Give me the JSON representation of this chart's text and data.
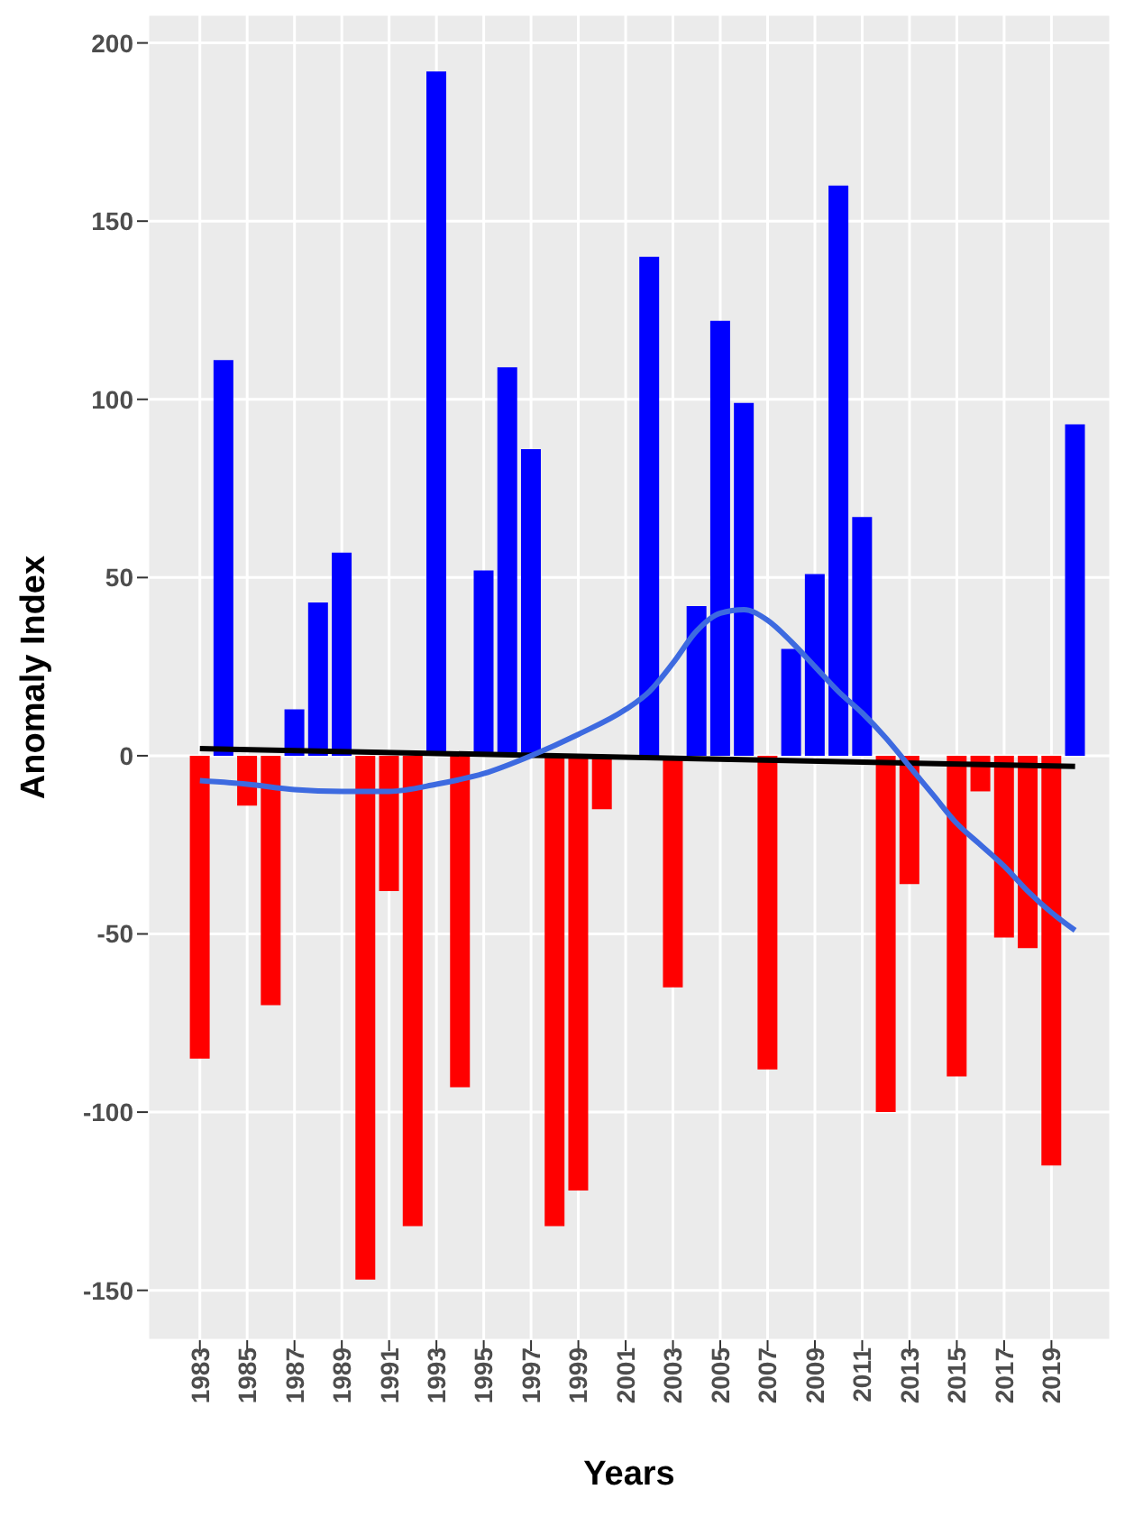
{
  "chart_data": {
    "type": "bar",
    "xlabel": "Years",
    "ylabel": "Anomaly Index",
    "x": [
      1983,
      1984,
      1985,
      1986,
      1987,
      1988,
      1989,
      1990,
      1991,
      1992,
      1993,
      1994,
      1995,
      1996,
      1997,
      1998,
      1999,
      2000,
      2001,
      2002,
      2003,
      2004,
      2005,
      2006,
      2007,
      2008,
      2009,
      2010,
      2011,
      2012,
      2013,
      2014,
      2015,
      2016,
      2017,
      2018,
      2019,
      2020
    ],
    "series": [
      {
        "values": [
          -85,
          111,
          -14,
          -70,
          13,
          43,
          57,
          -147,
          -38,
          -132,
          192,
          -93,
          52,
          109,
          86,
          -132,
          -122,
          -15,
          null,
          140,
          -65,
          42,
          122,
          99,
          -88,
          30,
          51,
          160,
          67,
          -100,
          -36,
          null,
          -90,
          -10,
          -51,
          -54,
          -115,
          93
        ],
        "colors": [
          "#ff0000",
          "#0000ff",
          "#ff0000",
          "#ff0000",
          "#0000ff",
          "#0000ff",
          "#0000ff",
          "#ff0000",
          "#ff0000",
          "#ff0000",
          "#0000ff",
          "#ff0000",
          "#0000ff",
          "#0000ff",
          "#0000ff",
          "#ff0000",
          "#ff0000",
          "#ff0000",
          "#ff0000",
          "#0000ff",
          "#ff0000",
          "#0000ff",
          "#0000ff",
          "#0000ff",
          "#ff0000",
          "#0000ff",
          "#0000ff",
          "#0000ff",
          "#0000ff",
          "#ff0000",
          "#ff0000",
          "#ff0000",
          "#ff0000",
          "#ff0000",
          "#ff0000",
          "#ff0000",
          "#ff0000",
          "#0000ff"
        ]
      },
      {
        "type": "line",
        "color": "#000000",
        "x": [
          1983,
          2020
        ],
        "values": [
          2,
          -3
        ]
      },
      {
        "type": "line",
        "color": "#3d6ae0",
        "x": [
          1983,
          1985,
          1987,
          1989,
          1991,
          1993,
          1995,
          1997,
          1999,
          2001,
          2002,
          2003,
          2004,
          2005,
          2006,
          2007,
          2008,
          2009,
          2010,
          2011,
          2012,
          2013,
          2014,
          2015,
          2016,
          2017,
          2018,
          2019,
          2020
        ],
        "values": [
          -7,
          -8,
          -9.5,
          -10,
          -10,
          -8,
          -5,
          0,
          6,
          13,
          18,
          26,
          35,
          40,
          41,
          38,
          32,
          25,
          18,
          12,
          5,
          -3,
          -11,
          -19,
          -25,
          -31,
          -38,
          -44,
          -49
        ]
      }
    ],
    "xlim": [
      1980.8,
      2021.5
    ],
    "xticks": [
      1983,
      1985,
      1987,
      1989,
      1991,
      1993,
      1995,
      1997,
      1999,
      2001,
      2003,
      2005,
      2007,
      2009,
      2011,
      2013,
      2015,
      2017,
      2019
    ],
    "ylim": [
      -164,
      208
    ],
    "yticks": [
      -150,
      -100,
      -50,
      0,
      50,
      100,
      150,
      200
    ],
    "grid": true,
    "legend": false,
    "marker": "none",
    "line_style": "solid"
  }
}
